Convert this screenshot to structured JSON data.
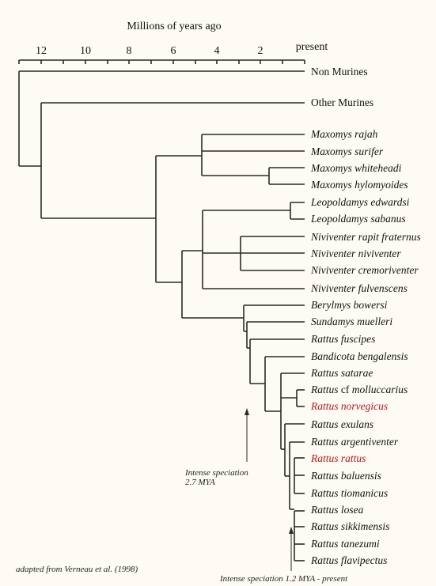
{
  "axis": {
    "title": "Millions of years ago",
    "ticks": [
      "12",
      "10",
      "8",
      "6",
      "4",
      "2"
    ],
    "present_label": "present"
  },
  "taxa": [
    {
      "id": "non-murines",
      "parts": [
        {
          "text": "Non Murines",
          "italic": false
        }
      ]
    },
    {
      "id": "other-murines",
      "parts": [
        {
          "text": "Other Murines",
          "italic": false
        }
      ]
    },
    {
      "id": "maxomys-rajah",
      "parts": [
        {
          "text": "Maxomys rajah",
          "italic": true
        }
      ]
    },
    {
      "id": "maxomys-surifer",
      "parts": [
        {
          "text": "Maxomys surifer",
          "italic": true
        }
      ]
    },
    {
      "id": "maxomys-whiteheadi",
      "parts": [
        {
          "text": "Maxomys whiteheadi",
          "italic": true
        }
      ]
    },
    {
      "id": "maxomys-hylomyoides",
      "parts": [
        {
          "text": "Maxomys hylomyoides",
          "italic": true
        }
      ]
    },
    {
      "id": "leopoldamys-edwardsi",
      "parts": [
        {
          "text": "Leopoldamys edwardsi",
          "italic": true
        }
      ]
    },
    {
      "id": "leopoldamys-sabanus",
      "parts": [
        {
          "text": "Leopoldamys sabanus",
          "italic": true
        }
      ]
    },
    {
      "id": "niviventer-rapit-fraternus",
      "parts": [
        {
          "text": "Niviventer rapit fraternus",
          "italic": true
        }
      ]
    },
    {
      "id": "niviventer-niviventer",
      "parts": [
        {
          "text": "Niviventer niviventer",
          "italic": true
        }
      ]
    },
    {
      "id": "niviventer-cremoriventer",
      "parts": [
        {
          "text": "Niviventer cremoriventer",
          "italic": true
        }
      ]
    },
    {
      "id": "niviventer-fulvenscens",
      "parts": [
        {
          "text": "Niviventer fulvenscens",
          "italic": true
        }
      ]
    },
    {
      "id": "berylmys-bowersi",
      "parts": [
        {
          "text": "Berylmys bowersi",
          "italic": true
        }
      ]
    },
    {
      "id": "sundamys-muelleri",
      "parts": [
        {
          "text": "Sundamys muelleri",
          "italic": true
        }
      ]
    },
    {
      "id": "rattus-fuscipes",
      "parts": [
        {
          "text": "Rattus fuscipes",
          "italic": true
        }
      ]
    },
    {
      "id": "bandicota-bengalensis",
      "parts": [
        {
          "text": "Bandicota bengalensis",
          "italic": true
        }
      ]
    },
    {
      "id": "rattus-satarae",
      "parts": [
        {
          "text": "Rattus satarae",
          "italic": true
        }
      ]
    },
    {
      "id": "rattus-cf-molluccarius",
      "parts": [
        {
          "text": "Rattus ",
          "italic": true
        },
        {
          "text": "cf ",
          "italic": false
        },
        {
          "text": "molluccarius",
          "italic": true
        }
      ]
    },
    {
      "id": "rattus-norvegicus",
      "highlight": "#b01818",
      "parts": [
        {
          "text": "Rattus norvegicus",
          "italic": true
        }
      ]
    },
    {
      "id": "rattus-exulans",
      "parts": [
        {
          "text": "Rattus exulans",
          "italic": true
        }
      ]
    },
    {
      "id": "rattus-argentiventer",
      "parts": [
        {
          "text": "Rattus argentiventer",
          "italic": true
        }
      ]
    },
    {
      "id": "rattus-rattus",
      "highlight": "#b01818",
      "parts": [
        {
          "text": "Rattus rattus",
          "italic": true
        }
      ]
    },
    {
      "id": "rattus-baluensis",
      "parts": [
        {
          "text": "Rattus baluensis",
          "italic": true
        }
      ]
    },
    {
      "id": "rattus-tiomanicus",
      "parts": [
        {
          "text": "Rattus tiomanicus",
          "italic": true
        }
      ]
    },
    {
      "id": "rattus-losea",
      "parts": [
        {
          "text": "Rattus losea",
          "italic": true
        }
      ]
    },
    {
      "id": "rattus-sikkimensis",
      "parts": [
        {
          "text": "Rattus sikkimensis",
          "italic": true
        }
      ]
    },
    {
      "id": "rattus-tanezumi",
      "parts": [
        {
          "text": "Rattus tanezumi",
          "italic": true
        }
      ]
    },
    {
      "id": "rattus-flavipectus",
      "parts": [
        {
          "text": "Rattus flavipectus",
          "italic": true
        }
      ]
    }
  ],
  "annotations": {
    "speciation_1": {
      "line1": "Intense speciation",
      "line2": "2.7 MYA"
    },
    "speciation_2": "Intense speciation 1.2 MYA - present",
    "source": "adapted from Verneau et al. (1998)"
  },
  "colors": {
    "highlight": "#b01818",
    "line": "#2a2a2a",
    "background": "#fdfbf3"
  }
}
